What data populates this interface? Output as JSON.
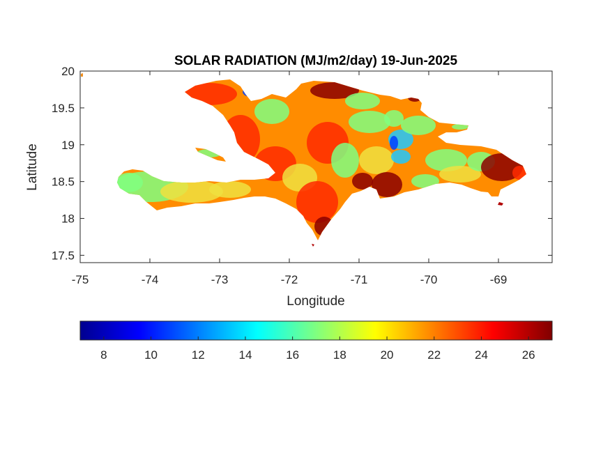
{
  "chart_data": {
    "type": "heatmap",
    "title": "SOLAR RADIATION (MJ/m2/day) 19-Jun-2025",
    "xlabel": "Longitude",
    "ylabel": "Latitude",
    "xlim": [
      -75,
      -68.23
    ],
    "ylim": [
      17.4,
      20
    ],
    "xticks": [
      -75,
      -74,
      -73,
      -72,
      -71,
      -70,
      -69
    ],
    "xtick_labels": [
      "-75",
      "-74",
      "-73",
      "-72",
      "-71",
      "-70",
      "-69"
    ],
    "yticks": [
      17.5,
      18,
      18.5,
      19,
      19.5,
      20
    ],
    "ytick_labels": [
      "17.5",
      "18",
      "18.5",
      "19",
      "19.5",
      "20"
    ],
    "grid": false,
    "colormap": "jet",
    "colorbar": {
      "orientation": "horizontal",
      "placement": "below",
      "range": [
        7,
        27
      ],
      "ticks": [
        8,
        10,
        12,
        14,
        16,
        18,
        20,
        22,
        24,
        26
      ],
      "tick_labels": [
        "8",
        "10",
        "12",
        "14",
        "16",
        "18",
        "20",
        "22",
        "24",
        "26"
      ]
    },
    "map_colors": {
      "very_high": "#8b0000",
      "high": "#ff2a00",
      "medium_high": "#ff8c00",
      "medium": "#f0e040",
      "medium_low": "#80ff80",
      "low": "#20c8ff",
      "very_low": "#0040ff"
    }
  }
}
